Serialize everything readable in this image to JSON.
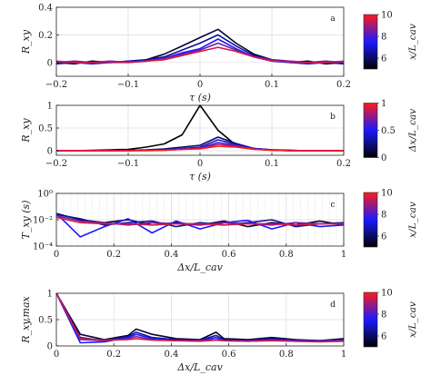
{
  "chart_data": [
    {
      "panel_label": "a",
      "type": "line",
      "xlabel": "τ (s)",
      "ylabel": "R_xy",
      "xlim": [
        -0.2,
        0.2
      ],
      "ylim": [
        -0.1,
        0.4
      ],
      "xticks": [
        -0.2,
        -0.1,
        0,
        0.1,
        0.2
      ],
      "xtick_labels": [
        "−0.2",
        "−0.1",
        "0",
        "0.1",
        "0.2"
      ],
      "yticks": [
        0,
        0.2,
        0.4
      ],
      "ytick_labels": [
        "0",
        "0.2",
        "0.4"
      ],
      "grid": true,
      "x": [
        -0.2,
        -0.175,
        -0.15,
        -0.125,
        -0.1,
        -0.075,
        -0.05,
        -0.025,
        0,
        0.025,
        0.05,
        0.075,
        0.1,
        0.125,
        0.15,
        0.175,
        0.2
      ],
      "series": [
        {
          "color_value": 5.5,
          "values": [
            0.0,
            -0.01,
            0.01,
            0.0,
            0.01,
            0.02,
            0.06,
            0.12,
            0.18,
            0.24,
            0.14,
            0.06,
            0.02,
            0.0,
            0.01,
            -0.01,
            0.0
          ]
        },
        {
          "color_value": 6.5,
          "values": [
            -0.01,
            0.0,
            0.0,
            0.01,
            0.0,
            0.02,
            0.04,
            0.09,
            0.14,
            0.2,
            0.12,
            0.05,
            0.02,
            0.01,
            0.0,
            0.0,
            -0.01
          ]
        },
        {
          "color_value": 7.5,
          "values": [
            0.0,
            0.0,
            -0.01,
            0.0,
            0.01,
            0.01,
            0.03,
            0.07,
            0.1,
            0.17,
            0.1,
            0.04,
            0.01,
            0.0,
            -0.01,
            0.0,
            0.0
          ]
        },
        {
          "color_value": 8.5,
          "values": [
            0.0,
            0.01,
            0.0,
            0.0,
            0.0,
            0.01,
            0.03,
            0.06,
            0.09,
            0.14,
            0.09,
            0.04,
            0.02,
            0.0,
            0.0,
            0.01,
            0.0
          ]
        },
        {
          "color_value": 9.5,
          "values": [
            0.01,
            0.0,
            0.0,
            0.01,
            0.0,
            0.01,
            0.02,
            0.05,
            0.08,
            0.11,
            0.08,
            0.04,
            0.01,
            0.01,
            0.0,
            0.0,
            0.01
          ]
        }
      ],
      "colorbar": {
        "label": "x/L_cav",
        "range": [
          5,
          10
        ],
        "ticks": [
          6,
          8,
          10
        ],
        "tick_labels": [
          "6",
          "8",
          "10"
        ]
      }
    },
    {
      "panel_label": "b",
      "type": "line",
      "xlabel": "τ (s)",
      "ylabel": "R_xy",
      "xlim": [
        -0.2,
        0.2
      ],
      "ylim": [
        -0.1,
        1.0
      ],
      "xticks": [
        -0.2,
        -0.1,
        0,
        0.1,
        0.2
      ],
      "xtick_labels": [
        "−0.2",
        "−0.1",
        "0",
        "0.1",
        "0.2"
      ],
      "yticks": [
        0,
        0.5,
        1
      ],
      "ytick_labels": [
        "0",
        "0.5",
        "1"
      ],
      "grid": true,
      "x": [
        -0.2,
        -0.175,
        -0.15,
        -0.125,
        -0.1,
        -0.075,
        -0.05,
        -0.025,
        0,
        0.025,
        0.05,
        0.075,
        0.1,
        0.125,
        0.15,
        0.175,
        0.2
      ],
      "series": [
        {
          "color_value": 0.0,
          "values": [
            0.0,
            0.0,
            0.01,
            0.02,
            0.03,
            0.08,
            0.15,
            0.35,
            1.0,
            0.45,
            0.12,
            0.05,
            0.02,
            0.01,
            0.0,
            0.0,
            0.0
          ]
        },
        {
          "color_value": 0.2,
          "values": [
            0.0,
            0.0,
            0.0,
            0.01,
            0.01,
            0.02,
            0.04,
            0.08,
            0.12,
            0.3,
            0.16,
            0.05,
            0.02,
            0.01,
            0.0,
            0.0,
            0.0
          ]
        },
        {
          "color_value": 0.4,
          "values": [
            0.0,
            0.0,
            0.0,
            0.0,
            0.01,
            0.01,
            0.02,
            0.05,
            0.08,
            0.24,
            0.14,
            0.05,
            0.02,
            0.0,
            0.0,
            0.0,
            0.0
          ]
        },
        {
          "color_value": 0.6,
          "values": [
            0.0,
            0.0,
            0.0,
            0.0,
            0.0,
            0.01,
            0.02,
            0.04,
            0.06,
            0.18,
            0.12,
            0.04,
            0.01,
            0.0,
            0.0,
            0.0,
            0.0
          ]
        },
        {
          "color_value": 0.8,
          "values": [
            0.0,
            0.0,
            0.0,
            0.0,
            0.0,
            0.01,
            0.01,
            0.03,
            0.05,
            0.14,
            0.1,
            0.04,
            0.01,
            0.0,
            0.0,
            0.0,
            0.0
          ]
        },
        {
          "color_value": 1.0,
          "values": [
            0.0,
            0.0,
            0.0,
            0.0,
            0.0,
            0.0,
            0.01,
            0.03,
            0.04,
            0.1,
            0.08,
            0.03,
            0.01,
            0.0,
            0.0,
            0.0,
            0.0
          ]
        }
      ],
      "colorbar": {
        "label": "Δx/L_cav",
        "range": [
          0,
          1
        ],
        "ticks": [
          0,
          0.5,
          1
        ],
        "tick_labels": [
          "0",
          "0.5",
          "1"
        ]
      }
    },
    {
      "panel_label": "c",
      "type": "line",
      "scale": "log",
      "xlabel": "Δx/L_cav",
      "ylabel": "T_xy (s)",
      "xlim": [
        0,
        1
      ],
      "ylim": [
        0.0001,
        1
      ],
      "xticks": [
        0,
        0.2,
        0.4,
        0.6,
        0.8,
        1
      ],
      "xtick_labels": [
        "0",
        "0.2",
        "0.4",
        "0.6",
        "0.8",
        "1"
      ],
      "yticks": [
        0.0001,
        0.01,
        1
      ],
      "ytick_labels": [
        "10⁻⁴",
        "10⁻²",
        "10⁰"
      ],
      "grid": true,
      "x": [
        0,
        0.0833,
        0.1667,
        0.25,
        0.3333,
        0.4167,
        0.5,
        0.5833,
        0.6667,
        0.75,
        0.8333,
        0.9167,
        1
      ],
      "series": [
        {
          "color_value": 5.5,
          "values": [
            0.03,
            0.01,
            0.006,
            0.01,
            0.004,
            0.006,
            0.004,
            0.008,
            0.003,
            0.006,
            0.004,
            0.008,
            0.004
          ]
        },
        {
          "color_value": 6.5,
          "values": [
            0.025,
            0.012,
            0.004,
            0.006,
            0.008,
            0.003,
            0.006,
            0.004,
            0.006,
            0.01,
            0.003,
            0.005,
            0.006
          ]
        },
        {
          "color_value": 7.5,
          "values": [
            0.03,
            0.0005,
            0.003,
            0.012,
            0.001,
            0.008,
            0.002,
            0.006,
            0.009,
            0.002,
            0.006,
            0.003,
            0.004
          ]
        },
        {
          "color_value": 8.5,
          "values": [
            0.02,
            0.008,
            0.006,
            0.004,
            0.006,
            0.005,
            0.004,
            0.006,
            0.005,
            0.004,
            0.006,
            0.005,
            0.005
          ]
        },
        {
          "color_value": 9.5,
          "values": [
            0.015,
            0.006,
            0.005,
            0.005,
            0.004,
            0.005,
            0.005,
            0.004,
            0.005,
            0.005,
            0.004,
            0.005,
            0.005
          ]
        }
      ],
      "colorbar": {
        "label": "x/L_cav",
        "range": [
          5,
          10
        ],
        "ticks": [
          6,
          8,
          10
        ],
        "tick_labels": [
          "6",
          "8",
          "10"
        ]
      }
    },
    {
      "panel_label": "d",
      "type": "line",
      "xlabel": "Δx/L_cav",
      "ylabel": "R_xy,max",
      "xlim": [
        0,
        1
      ],
      "ylim": [
        0,
        1
      ],
      "xticks": [
        0,
        0.2,
        0.4,
        0.6,
        0.8,
        1
      ],
      "xtick_labels": [
        "0",
        "0.2",
        "0.4",
        "0.6",
        "0.8",
        "1"
      ],
      "yticks": [
        0,
        0.5,
        1
      ],
      "ytick_labels": [
        "0",
        "0.5",
        "1"
      ],
      "grid": true,
      "x": [
        0,
        0.0833,
        0.1667,
        0.25,
        0.2778,
        0.3333,
        0.4167,
        0.5,
        0.5556,
        0.5833,
        0.6667,
        0.75,
        0.8333,
        0.9167,
        1
      ],
      "series": [
        {
          "color_value": 5.5,
          "values": [
            1,
            0.22,
            0.12,
            0.2,
            0.32,
            0.22,
            0.14,
            0.12,
            0.26,
            0.14,
            0.12,
            0.16,
            0.12,
            0.1,
            0.14
          ]
        },
        {
          "color_value": 6.5,
          "values": [
            1,
            0.16,
            0.1,
            0.18,
            0.26,
            0.16,
            0.12,
            0.11,
            0.2,
            0.12,
            0.1,
            0.14,
            0.11,
            0.1,
            0.12
          ]
        },
        {
          "color_value": 7.5,
          "values": [
            1,
            0.06,
            0.08,
            0.16,
            0.22,
            0.14,
            0.1,
            0.1,
            0.16,
            0.1,
            0.1,
            0.12,
            0.1,
            0.09,
            0.11
          ]
        },
        {
          "color_value": 8.5,
          "values": [
            1,
            0.12,
            0.1,
            0.14,
            0.18,
            0.12,
            0.1,
            0.1,
            0.12,
            0.1,
            0.09,
            0.11,
            0.09,
            0.09,
            0.1
          ]
        },
        {
          "color_value": 9.5,
          "values": [
            1,
            0.14,
            0.11,
            0.12,
            0.14,
            0.11,
            0.1,
            0.09,
            0.11,
            0.1,
            0.09,
            0.1,
            0.09,
            0.08,
            0.09
          ]
        }
      ],
      "colorbar": {
        "label": "x/L_cav",
        "range": [
          5,
          10
        ],
        "ticks": [
          6,
          8,
          10
        ],
        "tick_labels": [
          "6",
          "8",
          "10"
        ]
      }
    }
  ]
}
